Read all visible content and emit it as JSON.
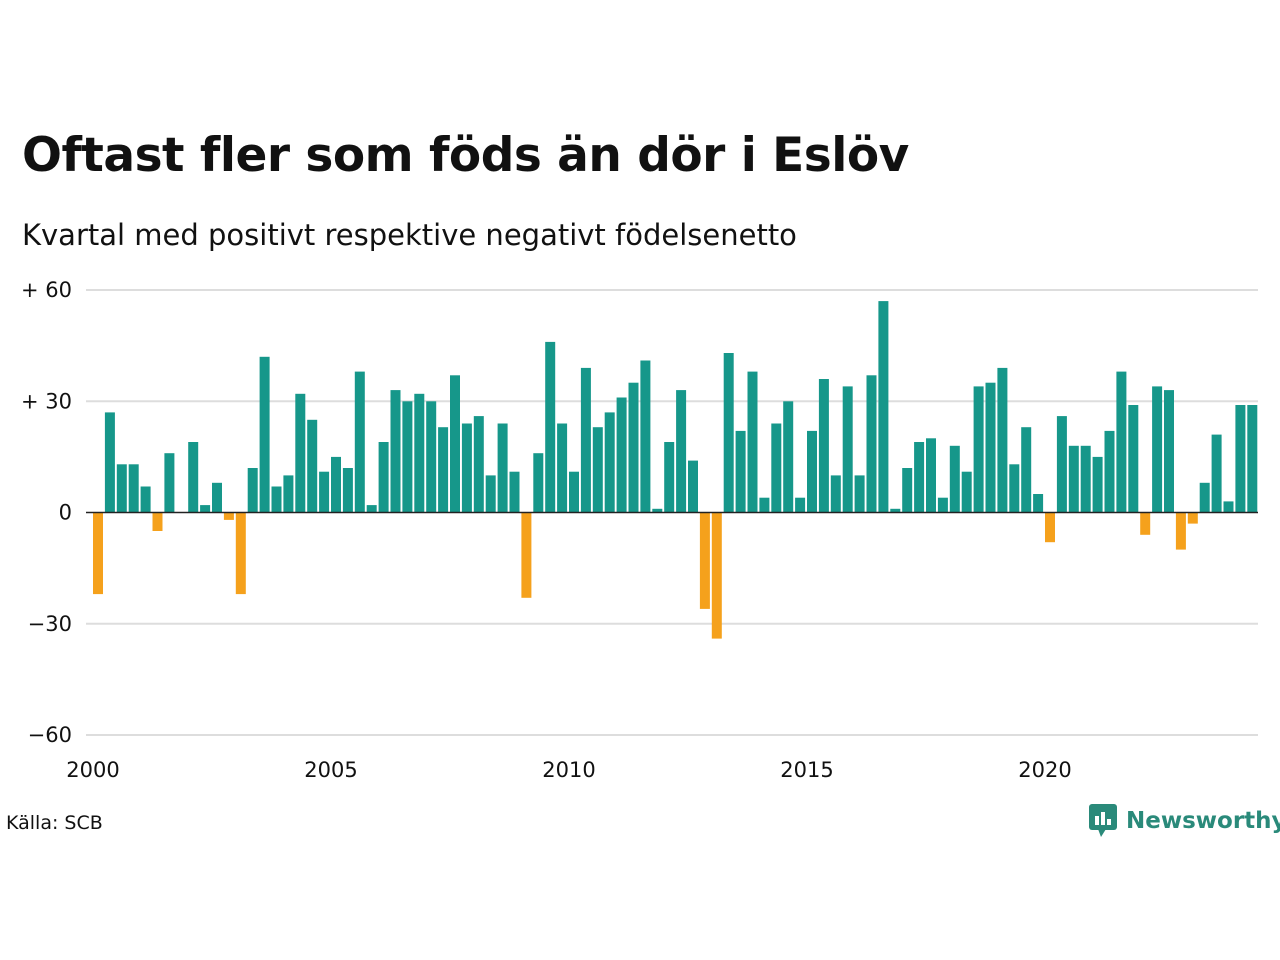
{
  "header": {
    "title": "Oftast fler som föds än dör i Eslöv",
    "subtitle": "Kvartal med positivt respektive negativt födelsenetto"
  },
  "footer": {
    "source": "Källa: SCB",
    "brand": "Newsworthy",
    "brand_icon": "newsworthy-logo-icon"
  },
  "colors": {
    "positive": "#16978a",
    "negative": "#f5a11c",
    "grid": "#dddddd",
    "baseline": "#222222",
    "brand": "#2a8a7a"
  },
  "chart_data": {
    "type": "bar",
    "x_start_year": 2000,
    "periods_per_year": 4,
    "values": [
      -22,
      27,
      13,
      13,
      7,
      -5,
      16,
      0,
      19,
      2,
      8,
      -2,
      -22,
      12,
      42,
      7,
      10,
      32,
      25,
      11,
      15,
      12,
      38,
      2,
      19,
      33,
      30,
      32,
      30,
      23,
      37,
      24,
      26,
      10,
      24,
      11,
      -23,
      16,
      46,
      24,
      11,
      39,
      23,
      27,
      31,
      35,
      41,
      1,
      19,
      33,
      14,
      -26,
      -34,
      43,
      22,
      38,
      4,
      24,
      30,
      4,
      22,
      36,
      10,
      34,
      10,
      37,
      57,
      1,
      12,
      19,
      20,
      4,
      18,
      11,
      34,
      35,
      39,
      13,
      23,
      5,
      -8,
      26,
      18,
      18,
      15,
      22,
      38,
      29,
      -6,
      34,
      33,
      -10,
      -3,
      8,
      21,
      3,
      29,
      29
    ],
    "ylim": [
      -60,
      60
    ],
    "yticks": [
      60,
      30,
      0,
      -30,
      -60
    ],
    "ytick_labels": [
      "+ 60",
      "+ 30",
      "0",
      "−30",
      "−60"
    ],
    "xticks": [
      "2000",
      "2005",
      "2010",
      "2015",
      "2020"
    ],
    "grid": true,
    "legend": "none"
  }
}
